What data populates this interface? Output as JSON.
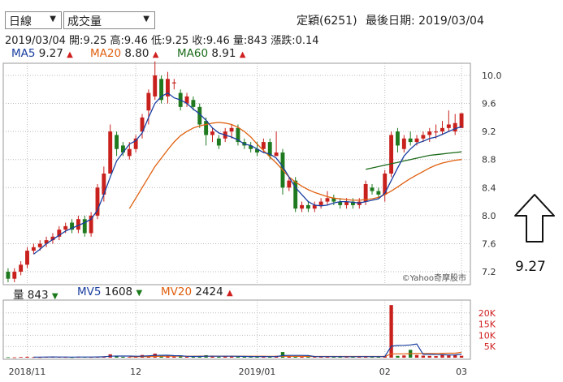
{
  "controls": {
    "period_select": {
      "value": "日線"
    },
    "indicator_select": {
      "value": "成交量"
    }
  },
  "header": {
    "stock_label": "定穎(6251)",
    "last_date_label": "最後日期: 2019/03/04"
  },
  "quote": {
    "text": "2019/03/04  開:9.25  高:9.46  低:9.25  收:9.46  量:843  漲跌:0.14"
  },
  "ma_legend": [
    {
      "name": "MA5",
      "value": "9.27",
      "color": "#1a3fa0",
      "trend": "▲"
    },
    {
      "name": "MA20",
      "value": "8.80",
      "color": "#e06010",
      "trend": "▲"
    },
    {
      "name": "MA60",
      "value": "8.91",
      "color": "#1b6b1b",
      "trend": "▲"
    }
  ],
  "volume_legend": [
    {
      "name": "量",
      "value": "843",
      "color": "#222222",
      "trend": "▼"
    },
    {
      "name": "MV5",
      "value": "1608",
      "color": "#1a3fa0",
      "trend": "▼"
    },
    {
      "name": "MV20",
      "value": "2424",
      "color": "#e06010",
      "trend": "▲"
    }
  ],
  "watermark": "©Yahoo奇摩股市",
  "side_value": "9.27",
  "side_icon": "up-arrow-icon",
  "colors": {
    "up": "#c8201c",
    "down": "#1f7a1f",
    "ma5": "#1a3fa0",
    "ma20": "#e06010",
    "ma60": "#1b6b1b",
    "grid": "#bbbbbb"
  },
  "chart_data": {
    "type": "candlestick",
    "price_axis": {
      "ticks": [
        7.2,
        7.6,
        8.0,
        8.4,
        8.8,
        9.2,
        9.6,
        10.0
      ],
      "labels": [
        "7.2",
        "7.6",
        "8.0",
        "8.4",
        "8.8",
        "9.2",
        "9.6",
        "10.0"
      ],
      "ylim": [
        7.05,
        10.15
      ]
    },
    "volume_axis": {
      "ticks": [
        5000,
        10000,
        15000,
        20000
      ],
      "labels": [
        "5K",
        "10K",
        "15K",
        "20K"
      ],
      "ylim": [
        0,
        25000
      ]
    },
    "x_labels": [
      {
        "label": "2018/11",
        "index": 3
      },
      {
        "label": "12",
        "index": 20
      },
      {
        "label": "2019/01",
        "index": 39
      },
      {
        "label": "02",
        "index": 59
      },
      {
        "label": "03",
        "index": 71
      }
    ],
    "candles": [
      [
        7.2,
        7.1,
        7.25,
        7.05
      ],
      [
        7.1,
        7.2,
        7.25,
        7.05
      ],
      [
        7.2,
        7.3,
        7.35,
        7.15
      ],
      [
        7.3,
        7.5,
        7.55,
        7.25
      ],
      [
        7.5,
        7.55,
        7.6,
        7.45
      ],
      [
        7.55,
        7.6,
        7.65,
        7.5
      ],
      [
        7.6,
        7.65,
        7.7,
        7.55
      ],
      [
        7.65,
        7.7,
        7.75,
        7.6
      ],
      [
        7.7,
        7.8,
        7.85,
        7.65
      ],
      [
        7.8,
        7.85,
        7.9,
        7.75
      ],
      [
        7.9,
        7.8,
        7.95,
        7.75
      ],
      [
        7.8,
        7.95,
        8.0,
        7.75
      ],
      [
        7.95,
        7.75,
        8.0,
        7.7
      ],
      [
        7.75,
        8.0,
        8.05,
        7.7
      ],
      [
        8.0,
        8.4,
        8.45,
        7.95
      ],
      [
        8.3,
        8.6,
        8.7,
        8.2
      ],
      [
        8.6,
        9.2,
        9.3,
        8.6
      ],
      [
        9.15,
        8.95,
        9.2,
        8.85
      ],
      [
        9.0,
        8.9,
        9.05,
        8.85
      ],
      [
        8.85,
        8.95,
        9.05,
        8.8
      ],
      [
        8.95,
        9.1,
        9.15,
        8.9
      ],
      [
        9.2,
        9.4,
        9.45,
        9.1
      ],
      [
        9.5,
        9.75,
        9.8,
        9.3
      ],
      [
        9.7,
        10.0,
        10.2,
        9.65
      ],
      [
        9.95,
        9.65,
        10.0,
        9.6
      ],
      [
        9.7,
        9.95,
        10.05,
        9.6
      ],
      [
        9.9,
        9.9,
        9.95,
        9.8
      ],
      [
        9.75,
        9.55,
        9.8,
        9.5
      ],
      [
        9.6,
        9.7,
        9.75,
        9.55
      ],
      [
        9.65,
        9.55,
        9.7,
        9.5
      ],
      [
        9.55,
        9.3,
        9.6,
        9.25
      ],
      [
        9.35,
        9.15,
        9.4,
        9.0
      ],
      [
        9.15,
        9.2,
        9.25,
        9.05
      ],
      [
        9.1,
        9.0,
        9.15,
        8.95
      ],
      [
        9.1,
        9.2,
        9.25,
        9.05
      ],
      [
        9.2,
        9.25,
        9.3,
        9.1
      ],
      [
        9.25,
        9.05,
        9.3,
        9.0
      ],
      [
        9.05,
        9.0,
        9.1,
        8.95
      ],
      [
        9.0,
        8.95,
        9.05,
        8.9
      ],
      [
        8.95,
        8.9,
        9.05,
        8.85
      ],
      [
        8.95,
        9.05,
        9.1,
        8.9
      ],
      [
        9.05,
        8.85,
        9.1,
        8.8
      ],
      [
        8.85,
        8.9,
        9.2,
        8.85
      ],
      [
        8.9,
        8.4,
        8.95,
        8.3
      ],
      [
        8.4,
        8.5,
        8.55,
        8.35
      ],
      [
        8.5,
        8.1,
        8.55,
        8.05
      ],
      [
        8.1,
        8.15,
        8.2,
        8.05
      ],
      [
        8.15,
        8.1,
        8.2,
        8.05
      ],
      [
        8.1,
        8.15,
        8.2,
        8.05
      ],
      [
        8.15,
        8.2,
        8.25,
        8.1
      ],
      [
        8.2,
        8.25,
        8.35,
        8.15
      ],
      [
        8.25,
        8.2,
        8.3,
        8.15
      ],
      [
        8.2,
        8.15,
        8.25,
        8.1
      ],
      [
        8.15,
        8.2,
        8.25,
        8.1
      ],
      [
        8.2,
        8.15,
        8.25,
        8.1
      ],
      [
        8.15,
        8.2,
        8.25,
        8.1
      ],
      [
        8.2,
        8.45,
        8.5,
        8.15
      ],
      [
        8.4,
        8.35,
        8.45,
        8.3
      ],
      [
        8.35,
        8.3,
        8.4,
        8.25
      ],
      [
        8.3,
        8.6,
        8.65,
        8.2
      ],
      [
        8.6,
        9.15,
        9.2,
        8.55
      ],
      [
        9.2,
        9.0,
        9.25,
        8.9
      ],
      [
        8.95,
        9.1,
        9.15,
        8.9
      ],
      [
        9.1,
        9.05,
        9.2,
        9.0
      ],
      [
        9.05,
        9.1,
        9.15,
        9.0
      ],
      [
        9.1,
        9.15,
        9.2,
        9.05
      ],
      [
        9.15,
        9.2,
        9.25,
        9.05
      ],
      [
        9.2,
        9.2,
        9.3,
        9.1
      ],
      [
        9.2,
        9.25,
        9.35,
        9.15
      ],
      [
        9.25,
        9.3,
        9.5,
        9.2
      ],
      [
        9.2,
        9.32,
        9.45,
        9.15
      ],
      [
        9.25,
        9.46,
        9.46,
        9.25
      ]
    ],
    "ma5": [
      null,
      null,
      null,
      null,
      7.45,
      7.52,
      7.6,
      7.66,
      7.72,
      7.78,
      7.82,
      7.86,
      7.9,
      7.95,
      8.08,
      8.3,
      8.55,
      8.78,
      8.9,
      9.02,
      9.07,
      9.18,
      9.4,
      9.6,
      9.7,
      9.75,
      9.68,
      9.65,
      9.6,
      9.52,
      9.45,
      9.36,
      9.25,
      9.18,
      9.15,
      9.12,
      9.08,
      9.02,
      9.0,
      8.95,
      8.9,
      8.88,
      8.82,
      8.7,
      8.55,
      8.4,
      8.3,
      8.2,
      8.15,
      8.14,
      8.15,
      8.18,
      8.2,
      8.2,
      8.19,
      8.18,
      8.2,
      8.22,
      8.24,
      8.32,
      8.5,
      8.68,
      8.85,
      8.95,
      9.03,
      9.06,
      9.1,
      9.12,
      9.16,
      9.2,
      9.24,
      9.27
    ],
    "ma20": [
      null,
      null,
      null,
      null,
      null,
      null,
      null,
      null,
      null,
      null,
      null,
      null,
      null,
      null,
      null,
      null,
      null,
      null,
      null,
      8.1,
      8.25,
      8.4,
      8.55,
      8.7,
      8.82,
      8.94,
      9.05,
      9.14,
      9.2,
      9.25,
      9.28,
      9.3,
      9.32,
      9.33,
      9.32,
      9.3,
      9.26,
      9.2,
      9.12,
      9.02,
      8.93,
      8.84,
      8.75,
      8.65,
      8.55,
      8.48,
      8.42,
      8.37,
      8.33,
      8.3,
      8.27,
      8.25,
      8.24,
      8.23,
      8.22,
      8.22,
      8.23,
      8.24,
      8.26,
      8.3,
      8.35,
      8.41,
      8.47,
      8.53,
      8.58,
      8.63,
      8.68,
      8.72,
      8.75,
      8.77,
      8.79,
      8.8
    ],
    "ma60": [
      null,
      null,
      null,
      null,
      null,
      null,
      null,
      null,
      null,
      null,
      null,
      null,
      null,
      null,
      null,
      null,
      null,
      null,
      null,
      null,
      null,
      null,
      null,
      null,
      null,
      null,
      null,
      null,
      null,
      null,
      null,
      null,
      null,
      null,
      null,
      null,
      null,
      null,
      null,
      null,
      null,
      null,
      null,
      null,
      null,
      null,
      null,
      null,
      null,
      null,
      null,
      null,
      null,
      null,
      null,
      null,
      8.66,
      8.68,
      8.7,
      8.72,
      8.74,
      8.76,
      8.78,
      8.8,
      8.82,
      8.84,
      8.86,
      8.87,
      8.88,
      8.89,
      8.9,
      8.91
    ],
    "volumes": [
      200,
      150,
      300,
      400,
      250,
      200,
      300,
      350,
      300,
      250,
      200,
      400,
      300,
      250,
      500,
      600,
      1500,
      700,
      400,
      300,
      500,
      1200,
      900,
      1800,
      800,
      700,
      500,
      600,
      400,
      500,
      700,
      1100,
      500,
      400,
      600,
      500,
      700,
      400,
      300,
      400,
      600,
      500,
      800,
      2500,
      600,
      700,
      500,
      400,
      300,
      400,
      500,
      600,
      400,
      300,
      400,
      500,
      600,
      500,
      400,
      800,
      23500,
      800,
      1000,
      3500,
      1200,
      900,
      800,
      700,
      1500,
      1000,
      1200,
      843
    ],
    "mv5": [
      null,
      null,
      null,
      null,
      260,
      260,
      290,
      320,
      280,
      280,
      270,
      290,
      290,
      280,
      330,
      410,
      650,
      720,
      740,
      720,
      640,
      700,
      820,
      1020,
      1040,
      1080,
      920,
      880,
      600,
      540,
      540,
      660,
      640,
      640,
      660,
      640,
      600,
      540,
      500,
      480,
      500,
      480,
      500,
      960,
      1000,
      1020,
      1020,
      940,
      500,
      460,
      460,
      480,
      460,
      440,
      440,
      460,
      480,
      460,
      460,
      520,
      5140,
      5420,
      5500,
      5700,
      6100,
      1480,
      1480,
      1380,
      1340,
      1180,
      1240,
      1608
    ],
    "mv20": [
      null,
      null,
      null,
      null,
      null,
      null,
      null,
      null,
      null,
      null,
      null,
      null,
      null,
      null,
      null,
      null,
      null,
      null,
      null,
      420,
      440,
      490,
      520,
      590,
      620,
      640,
      650,
      660,
      660,
      670,
      690,
      700,
      680,
      670,
      660,
      650,
      650,
      640,
      640,
      640,
      640,
      600,
      600,
      640,
      600,
      590,
      580,
      560,
      560,
      560,
      550,
      540,
      540,
      530,
      530,
      530,
      530,
      530,
      530,
      540,
      1700,
      1710,
      1720,
      1820,
      1860,
      1880,
      1890,
      1900,
      1950,
      1980,
      2000,
      2424
    ]
  }
}
